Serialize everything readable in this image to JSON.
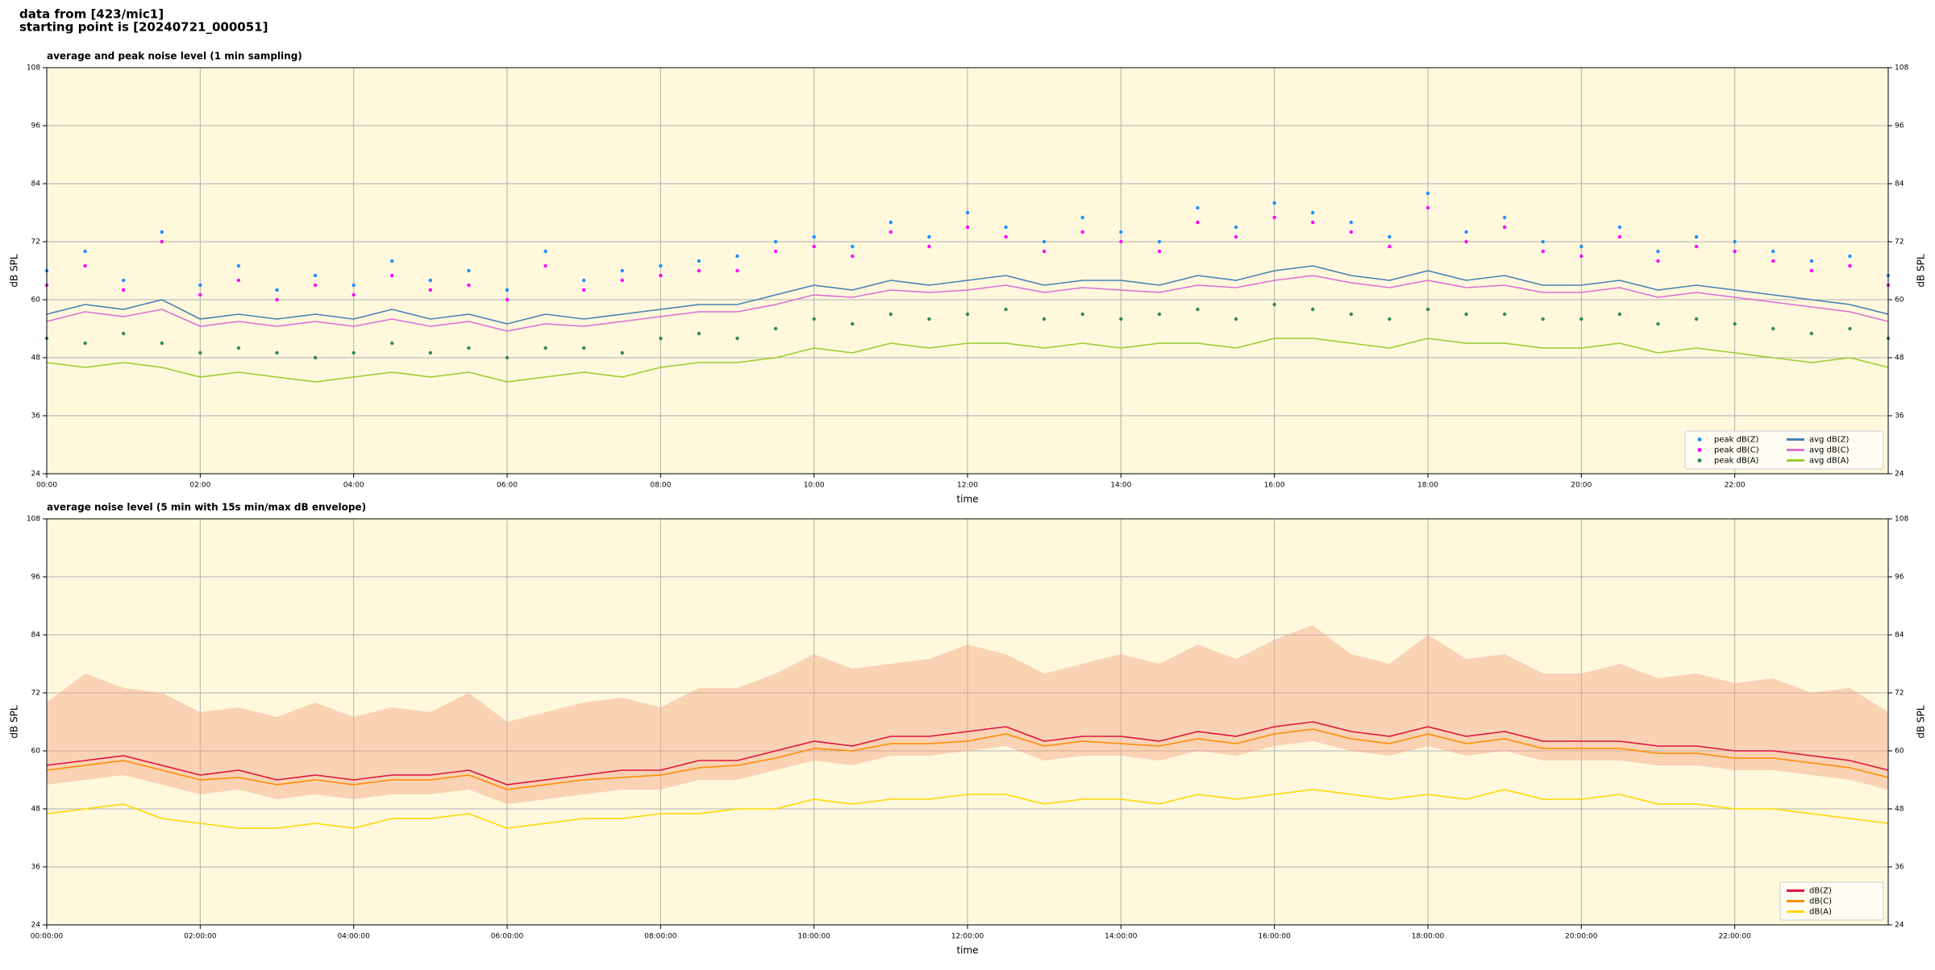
{
  "header": {
    "source": "data from [423/mic1]",
    "start": "starting point is [20240721_000051]"
  },
  "chart_data": [
    {
      "type": "line",
      "title": "average and peak noise level (1 min sampling)",
      "xlabel": "time",
      "ylabel": "dB SPL",
      "x": [
        0,
        0.5,
        1,
        1.5,
        2,
        2.5,
        3,
        3.5,
        4,
        4.5,
        5,
        5.5,
        6,
        6.5,
        7,
        7.5,
        8,
        8.5,
        9,
        9.5,
        10,
        10.5,
        11,
        11.5,
        12,
        12.5,
        13,
        13.5,
        14,
        14.5,
        15,
        15.5,
        16,
        16.5,
        17,
        17.5,
        18,
        18.5,
        19,
        19.5,
        20,
        20.5,
        21,
        21.5,
        22,
        22.5,
        23,
        23.5,
        24
      ],
      "xlim": [
        0,
        24
      ],
      "xticks": [
        {
          "value": 0,
          "label": "00:00"
        },
        {
          "value": 2,
          "label": "02:00"
        },
        {
          "value": 4,
          "label": "04:00"
        },
        {
          "value": 6,
          "label": "06:00"
        },
        {
          "value": 8,
          "label": "08:00"
        },
        {
          "value": 10,
          "label": "10:00"
        },
        {
          "value": 12,
          "label": "12:00"
        },
        {
          "value": 14,
          "label": "14:00"
        },
        {
          "value": 16,
          "label": "16:00"
        },
        {
          "value": 18,
          "label": "18:00"
        },
        {
          "value": 20,
          "label": "20:00"
        },
        {
          "value": 22,
          "label": "22:00"
        }
      ],
      "ylim": [
        24,
        108
      ],
      "yticks": [
        24,
        36,
        48,
        60,
        72,
        84,
        96,
        108
      ],
      "grid": true,
      "background": "#fff8dc",
      "legend": "lower right",
      "legend_columns": 2,
      "series": [
        {
          "name": "peak dB(Z)",
          "type": "scatter",
          "color": "#1e90ff",
          "values": [
            66,
            70,
            64,
            74,
            63,
            67,
            62,
            65,
            63,
            68,
            64,
            66,
            62,
            70,
            64,
            66,
            67,
            68,
            69,
            72,
            73,
            71,
            76,
            73,
            78,
            75,
            72,
            77,
            74,
            72,
            79,
            75,
            80,
            78,
            76,
            73,
            82,
            74,
            77,
            72,
            71,
            75,
            70,
            73,
            72,
            70,
            68,
            69,
            65
          ]
        },
        {
          "name": "peak dB(C)",
          "type": "scatter",
          "color": "#ff00ff",
          "values": [
            63,
            67,
            62,
            72,
            61,
            64,
            60,
            63,
            61,
            65,
            62,
            63,
            60,
            67,
            62,
            64,
            65,
            66,
            66,
            70,
            71,
            69,
            74,
            71,
            75,
            73,
            70,
            74,
            72,
            70,
            76,
            73,
            77,
            76,
            74,
            71,
            79,
            72,
            75,
            70,
            69,
            73,
            68,
            71,
            70,
            68,
            66,
            67,
            63
          ]
        },
        {
          "name": "peak dB(A)",
          "type": "scatter",
          "color": "#2e8b57",
          "values": [
            52,
            51,
            53,
            51,
            49,
            50,
            49,
            48,
            49,
            51,
            49,
            50,
            48,
            50,
            50,
            49,
            52,
            53,
            52,
            54,
            56,
            55,
            57,
            56,
            57,
            58,
            56,
            57,
            56,
            57,
            58,
            56,
            59,
            58,
            57,
            56,
            58,
            57,
            57,
            56,
            56,
            57,
            55,
            56,
            55,
            54,
            53,
            54,
            52
          ]
        },
        {
          "name": "avg dB(Z)",
          "type": "line",
          "color": "#4682b4",
          "values": [
            57,
            59,
            58,
            60,
            56,
            57,
            56,
            57,
            56,
            58,
            56,
            57,
            55,
            57,
            56,
            57,
            58,
            59,
            59,
            61,
            63,
            62,
            64,
            63,
            64,
            65,
            63,
            64,
            64,
            63,
            65,
            64,
            66,
            67,
            65,
            64,
            66,
            64,
            65,
            63,
            63,
            64,
            62,
            63,
            62,
            61,
            60,
            59,
            57
          ]
        },
        {
          "name": "avg dB(C)",
          "type": "line",
          "color": "#da70d6",
          "values": [
            55.5,
            57.5,
            56.5,
            58,
            54.5,
            55.5,
            54.5,
            55.5,
            54.5,
            56,
            54.5,
            55.5,
            53.5,
            55,
            54.5,
            55.5,
            56.5,
            57.5,
            57.5,
            59,
            61,
            60.5,
            62,
            61.5,
            62,
            63,
            61.5,
            62.5,
            62,
            61.5,
            63,
            62.5,
            64,
            65,
            63.5,
            62.5,
            64,
            62.5,
            63,
            61.5,
            61.5,
            62.5,
            60.5,
            61.5,
            60.5,
            59.5,
            58.5,
            57.5,
            55.5
          ]
        },
        {
          "name": "avg dB(A)",
          "type": "line",
          "color": "#9acd32",
          "values": [
            47,
            46,
            47,
            46,
            44,
            45,
            44,
            43,
            44,
            45,
            44,
            45,
            43,
            44,
            45,
            44,
            46,
            47,
            47,
            48,
            50,
            49,
            51,
            50,
            51,
            51,
            50,
            51,
            50,
            51,
            51,
            50,
            52,
            52,
            51,
            50,
            52,
            51,
            51,
            50,
            50,
            51,
            49,
            50,
            49,
            48,
            47,
            48,
            46
          ]
        }
      ]
    },
    {
      "type": "line",
      "title": "average noise level (5 min with 15s min/max dB envelope)",
      "xlabel": "time",
      "ylabel": "dB SPL",
      "x": [
        0,
        0.5,
        1,
        1.5,
        2,
        2.5,
        3,
        3.5,
        4,
        4.5,
        5,
        5.5,
        6,
        6.5,
        7,
        7.5,
        8,
        8.5,
        9,
        9.5,
        10,
        10.5,
        11,
        11.5,
        12,
        12.5,
        13,
        13.5,
        14,
        14.5,
        15,
        15.5,
        16,
        16.5,
        17,
        17.5,
        18,
        18.5,
        19,
        19.5,
        20,
        20.5,
        21,
        21.5,
        22,
        22.5,
        23,
        23.5,
        24
      ],
      "xlim": [
        0,
        24
      ],
      "xticks": [
        {
          "value": 0,
          "label": "00:00:00"
        },
        {
          "value": 2,
          "label": "02:00:00"
        },
        {
          "value": 4,
          "label": "04:00:00"
        },
        {
          "value": 6,
          "label": "06:00:00"
        },
        {
          "value": 8,
          "label": "08:00:00"
        },
        {
          "value": 10,
          "label": "10:00:00"
        },
        {
          "value": 12,
          "label": "12:00:00"
        },
        {
          "value": 14,
          "label": "14:00:00"
        },
        {
          "value": 16,
          "label": "16:00:00"
        },
        {
          "value": 18,
          "label": "18:00:00"
        },
        {
          "value": 20,
          "label": "20:00:00"
        },
        {
          "value": 22,
          "label": "22:00:00"
        }
      ],
      "ylim": [
        24,
        108
      ],
      "yticks": [
        24,
        36,
        48,
        60,
        72,
        84,
        96,
        108
      ],
      "grid": true,
      "background": "#fff8dc",
      "legend": "lower right",
      "legend_columns": 1,
      "envelope": {
        "color": "#f4a582",
        "min": [
          53,
          54,
          55,
          53,
          51,
          52,
          50,
          51,
          50,
          51,
          51,
          52,
          49,
          50,
          51,
          52,
          52,
          54,
          54,
          56,
          58,
          57,
          59,
          59,
          60,
          61,
          58,
          59,
          59,
          58,
          60,
          59,
          61,
          62,
          60,
          59,
          61,
          59,
          60,
          58,
          58,
          58,
          57,
          57,
          56,
          56,
          55,
          54,
          52
        ],
        "max": [
          70,
          76,
          73,
          72,
          68,
          69,
          67,
          70,
          67,
          69,
          68,
          72,
          66,
          68,
          70,
          71,
          69,
          73,
          73,
          76,
          80,
          77,
          78,
          79,
          82,
          80,
          76,
          78,
          80,
          78,
          82,
          79,
          83,
          86,
          80,
          78,
          84,
          79,
          80,
          76,
          76,
          78,
          75,
          76,
          74,
          75,
          72,
          73,
          68
        ]
      },
      "series": [
        {
          "name": "dB(Z)",
          "type": "line",
          "color": "#dc143c",
          "values": [
            57,
            58,
            59,
            57,
            55,
            56,
            54,
            55,
            54,
            55,
            55,
            56,
            53,
            54,
            55,
            56,
            56,
            58,
            58,
            60,
            62,
            61,
            63,
            63,
            64,
            65,
            62,
            63,
            63,
            62,
            64,
            63,
            65,
            66,
            64,
            63,
            65,
            63,
            64,
            62,
            62,
            62,
            61,
            61,
            60,
            60,
            59,
            58,
            56
          ]
        },
        {
          "name": "dB(C)",
          "type": "line",
          "color": "#ff8c00",
          "values": [
            56,
            57,
            58,
            56,
            54,
            54.5,
            53,
            54,
            53,
            54,
            54,
            55,
            52,
            53,
            54,
            54.5,
            55,
            56.5,
            57,
            58.5,
            60.5,
            60,
            61.5,
            61.5,
            62,
            63.5,
            61,
            62,
            61.5,
            61,
            62.5,
            61.5,
            63.5,
            64.5,
            62.5,
            61.5,
            63.5,
            61.5,
            62.5,
            60.5,
            60.5,
            60.5,
            59.5,
            59.5,
            58.5,
            58.5,
            57.5,
            56.5,
            54.5
          ]
        },
        {
          "name": "dB(A)",
          "type": "line",
          "color": "#ffd700",
          "values": [
            47,
            48,
            49,
            46,
            45,
            44,
            44,
            45,
            44,
            46,
            46,
            47,
            44,
            45,
            46,
            46,
            47,
            47,
            48,
            48,
            50,
            49,
            50,
            50,
            51,
            51,
            49,
            50,
            50,
            49,
            51,
            50,
            51,
            52,
            51,
            50,
            51,
            50,
            52,
            50,
            50,
            51,
            49,
            49,
            48,
            48,
            47,
            46,
            45
          ]
        }
      ]
    }
  ]
}
